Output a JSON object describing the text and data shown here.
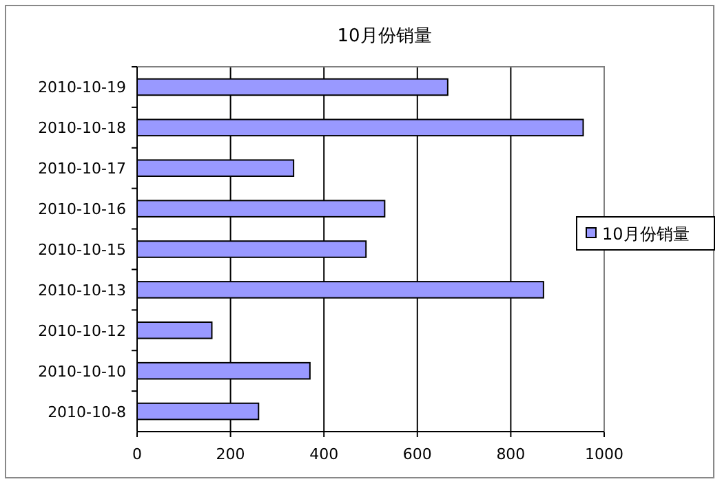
{
  "chart_data": {
    "type": "bar",
    "orientation": "horizontal",
    "title": "10月份销量",
    "categories": [
      "2010-10-19",
      "2010-10-18",
      "2010-10-17",
      "2010-10-16",
      "2010-10-15",
      "2010-10-13",
      "2010-10-12",
      "2010-10-10",
      "2010-10-8"
    ],
    "series": [
      {
        "name": "10月份销量",
        "color": "#9999ff",
        "values": [
          665,
          955,
          335,
          530,
          490,
          870,
          160,
          370,
          260
        ]
      }
    ],
    "xlim": [
      0,
      1000
    ],
    "xticks": [
      0,
      200,
      400,
      600,
      800,
      1000
    ],
    "grid": "x",
    "legend": "right"
  }
}
